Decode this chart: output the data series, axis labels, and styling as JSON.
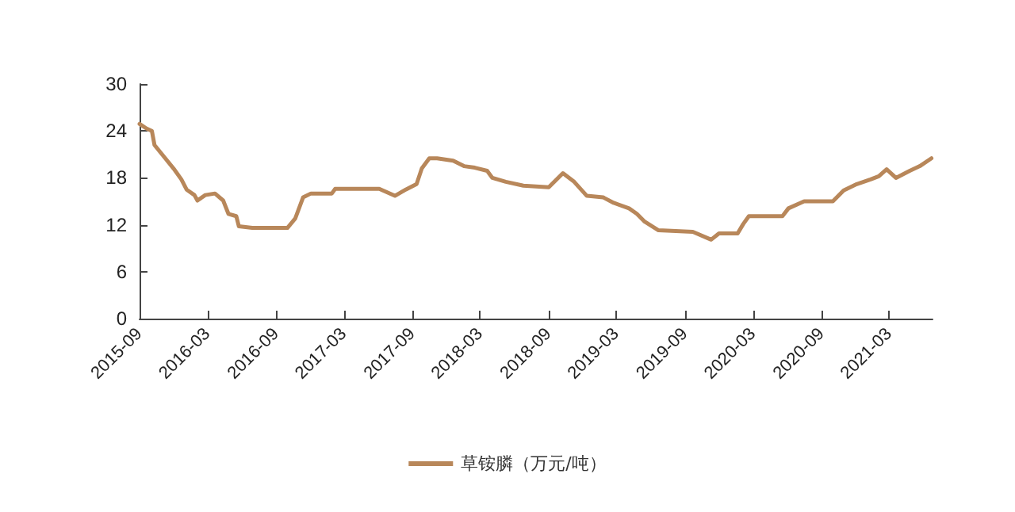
{
  "chart_data": {
    "type": "line",
    "marker": "none",
    "legend": "bottom",
    "grid": false,
    "xlim": [
      "2015-09-01",
      "2021-06-25"
    ],
    "xticks": [
      "2015-09",
      "2016-03",
      "2016-09",
      "2017-03",
      "2017-09",
      "2018-03",
      "2018-09",
      "2019-03",
      "2019-09",
      "2020-03",
      "2020-09",
      "2021-03"
    ],
    "ylim": [
      0,
      30
    ],
    "yticks": [
      0,
      6,
      12,
      18,
      24,
      30
    ],
    "x": [
      "2015-09-01",
      "2015-09-20",
      "2015-10-04",
      "2015-10-11",
      "2015-11-02",
      "2015-12-01",
      "2015-12-22",
      "2016-01-05",
      "2016-01-26",
      "2016-02-03",
      "2016-02-24",
      "2016-03-21",
      "2016-04-12",
      "2016-04-26",
      "2016-05-17",
      "2016-05-24",
      "2016-06-29",
      "2016-10-01",
      "2016-10-22",
      "2016-11-12",
      "2016-12-03",
      "2017-01-28",
      "2017-02-06",
      "2017-06-04",
      "2017-07-16",
      "2017-08-14",
      "2017-09-12",
      "2017-09-26",
      "2017-10-16",
      "2017-11-06",
      "2017-12-19",
      "2018-01-17",
      "2018-02-15",
      "2018-03-20",
      "2018-04-03",
      "2018-05-09",
      "2018-06-25",
      "2018-09-01",
      "2018-10-09",
      "2018-11-08",
      "2018-12-12",
      "2019-01-25",
      "2019-02-22",
      "2019-04-04",
      "2019-04-25",
      "2019-05-16",
      "2019-06-22",
      "2019-09-22",
      "2019-11-10",
      "2019-12-01",
      "2020-01-20",
      "2020-02-04",
      "2020-02-19",
      "2020-05-19",
      "2020-06-04",
      "2020-07-16",
      "2020-10-01",
      "2020-10-30",
      "2020-12-04",
      "2021-01-10",
      "2021-02-01",
      "2021-02-22",
      "2021-03-19",
      "2021-04-25",
      "2021-05-22",
      "2021-06-22"
    ],
    "series": [
      {
        "name": "草铵膦（万元/吨）",
        "color": "#b8875a",
        "values": [
          24.9,
          24.3,
          24,
          22.2,
          20.9,
          19.2,
          17.8,
          16.5,
          15.8,
          15.1,
          15.8,
          16,
          15.1,
          13.4,
          13.1,
          11.8,
          11.6,
          11.6,
          12.8,
          15.5,
          16,
          16,
          16.6,
          16.6,
          15.7,
          16.5,
          17.2,
          19.2,
          20.5,
          20.5,
          20.2,
          19.5,
          19.3,
          18.9,
          18,
          17.5,
          17,
          16.8,
          18.6,
          17.5,
          15.7,
          15.5,
          14.8,
          14.1,
          13.4,
          12.4,
          11.3,
          11.1,
          10.1,
          10.9,
          10.9,
          12.1,
          13.1,
          13.1,
          14.1,
          15,
          15,
          16.4,
          17.2,
          17.8,
          18.2,
          19.1,
          18,
          18.9,
          19.5,
          20.5
        ]
      }
    ]
  }
}
